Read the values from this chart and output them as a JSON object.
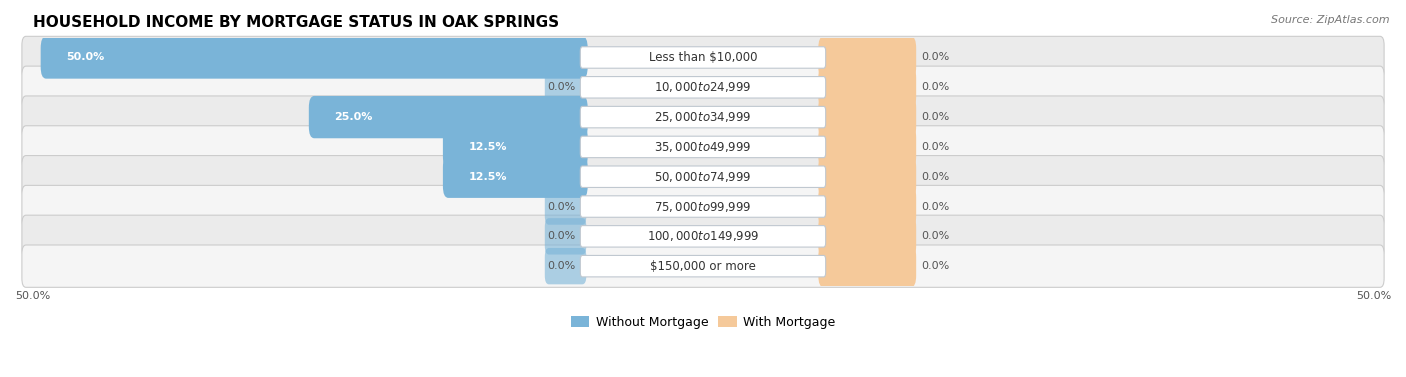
{
  "title": "HOUSEHOLD INCOME BY MORTGAGE STATUS IN OAK SPRINGS",
  "source": "Source: ZipAtlas.com",
  "categories": [
    "Less than $10,000",
    "$10,000 to $24,999",
    "$25,000 to $34,999",
    "$35,000 to $49,999",
    "$50,000 to $74,999",
    "$75,000 to $99,999",
    "$100,000 to $149,999",
    "$150,000 or more"
  ],
  "without_mortgage": [
    50.0,
    0.0,
    25.0,
    12.5,
    12.5,
    0.0,
    0.0,
    0.0
  ],
  "with_mortgage": [
    0.0,
    0.0,
    0.0,
    0.0,
    0.0,
    0.0,
    0.0,
    0.0
  ],
  "color_without": "#7ab4d8",
  "color_with": "#f5c99a",
  "row_bg_even": "#ebebeb",
  "row_bg_odd": "#f5f5f5",
  "axis_max": 50.0,
  "min_bar_display": 3.0,
  "legend_without": "Without Mortgage",
  "legend_with": "With Mortgage",
  "title_fontsize": 11,
  "source_fontsize": 8,
  "value_fontsize": 8,
  "category_fontsize": 8.5,
  "legend_fontsize": 9,
  "axis_label_fontsize": 8
}
